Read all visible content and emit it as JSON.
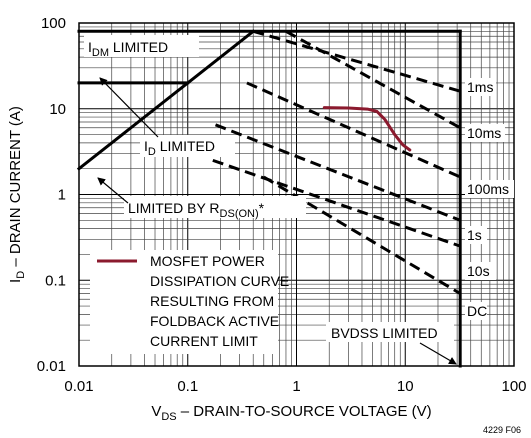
{
  "chart_data": {
    "type": "line",
    "scale": {
      "x": "log",
      "y": "log"
    },
    "xlim": [
      0.01,
      100
    ],
    "ylim": [
      0.01,
      100
    ],
    "xlabel": {
      "main": "V",
      "sub": "DS",
      "rest": " – DRAIN-TO-SOURCE VOLTAGE (V)"
    },
    "ylabel": {
      "main": "I",
      "sub": "D",
      "rest": " – DRAIN CURRENT (A)"
    },
    "xticks": [
      "0.01",
      "0.1",
      "1",
      "10",
      "100"
    ],
    "yticks": [
      "0.01",
      "0.1",
      "1",
      "10",
      "100"
    ],
    "figure_id": "4229 F06",
    "grid": true,
    "boundary_lines": [
      {
        "name": "IDM limited",
        "points": [
          [
            0.01,
            80
          ],
          [
            32,
            80
          ]
        ]
      },
      {
        "name": "ID limited",
        "points": [
          [
            0.01,
            20
          ],
          [
            0.1,
            20
          ]
        ]
      },
      {
        "name": "RDS(ON) limited",
        "points": [
          [
            0.01,
            2
          ],
          [
            0.4,
            80
          ]
        ]
      },
      {
        "name": "BVDSS limited",
        "points": [
          [
            32,
            80
          ],
          [
            32,
            0.01
          ]
        ]
      }
    ],
    "soa_lines": [
      {
        "label": "1ms",
        "points": [
          [
            0.4,
            80
          ],
          [
            32,
            16
          ]
        ]
      },
      {
        "label": "10ms",
        "points": [
          [
            0.8,
            80
          ],
          [
            32,
            6
          ]
        ]
      },
      {
        "label": "100ms",
        "points": [
          [
            0.35,
            20
          ],
          [
            32,
            1.6
          ]
        ]
      },
      {
        "label": "1s",
        "points": [
          [
            0.18,
            6.5
          ],
          [
            32,
            0.5
          ]
        ]
      },
      {
        "label": "10s",
        "points": [
          [
            0.17,
            2.5
          ],
          [
            32,
            0.25
          ]
        ]
      },
      {
        "label": "DC",
        "points": [
          [
            0.5,
            1.6
          ],
          [
            32,
            0.07
          ]
        ]
      }
    ],
    "series": [
      {
        "name": "MOSFET POWER DISSIPATION CURVE RESULTING FROM FOLDBACK ACTIVE CURRENT LIMIT",
        "color": "#8b1a2e",
        "x": [
          1.8,
          3,
          4.5,
          5.5,
          6.5,
          8,
          9.5,
          11
        ],
        "y": [
          10.3,
          10.2,
          9.9,
          9.3,
          7.5,
          5,
          3.8,
          3.3
        ]
      }
    ],
    "annotations": {
      "idm": {
        "main": "I",
        "sub": "DM",
        "rest": " LIMITED"
      },
      "id": {
        "main": "I",
        "sub": "D",
        "rest": " LIMITED"
      },
      "rds": {
        "main": "LIMITED BY R",
        "sub": "DS(ON)",
        "rest": "*"
      },
      "bvdss": "BVDSS LIMITED",
      "legend_lines": [
        "MOSFET POWER",
        "DISSIPATION CURVE",
        "RESULTING FROM",
        "FOLDBACK ACTIVE",
        "CURRENT LIMIT"
      ]
    }
  }
}
